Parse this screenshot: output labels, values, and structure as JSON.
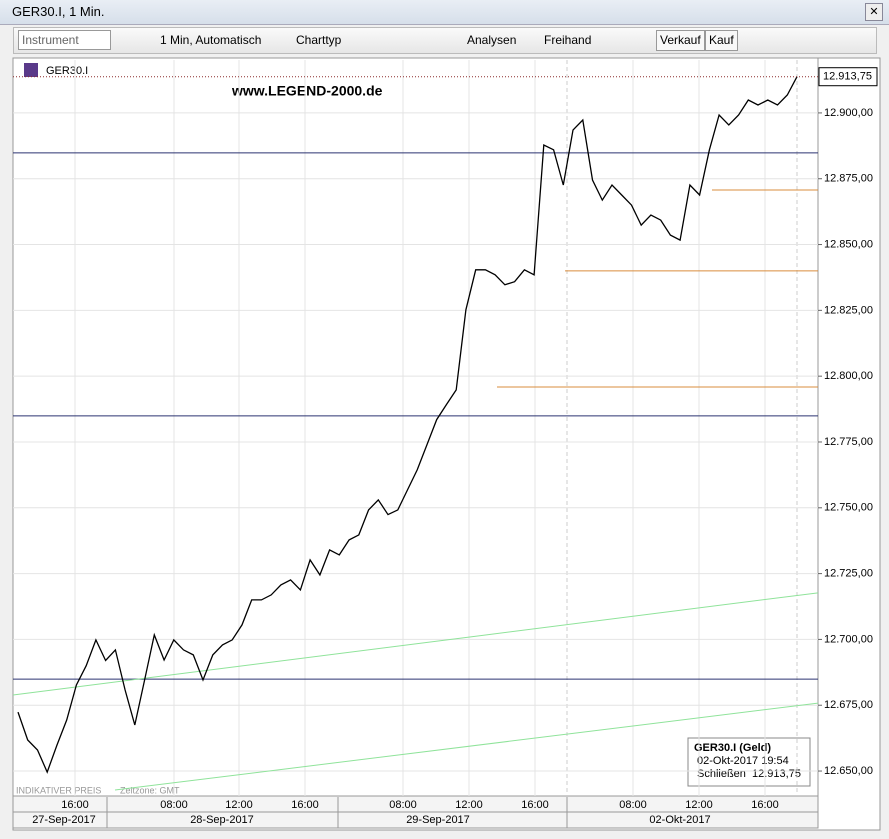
{
  "window": {
    "title": "GER30.I, 1 Min."
  },
  "toolbar": {
    "instrument": "Instrument",
    "interval": "1 Min,  Automatisch",
    "charttyp": "Charttyp",
    "analysen": "Analysen",
    "freihand": "Freihand",
    "verkauf": "Verkauf",
    "kauf": "Kauf"
  },
  "chart_data": {
    "type": "line",
    "symbol": "GER30.I",
    "watermark": "www.LEGEND-2000.de",
    "footer": "INDIKATIVER PREIS",
    "timezone": "Zeitzone: GMT",
    "series": [
      {
        "name": "GER30.I",
        "color": "#000000",
        "values": [
          12672.4,
          12661.8,
          12658,
          12649.6,
          12659.9,
          12669.4,
          12682.7,
          12690,
          12699.8,
          12692,
          12696,
          12680.8,
          12667.5,
          12684.6,
          12701.7,
          12692.2,
          12699.8,
          12696,
          12694.1,
          12684.6,
          12694.1,
          12697.9,
          12699.8,
          12705.5,
          12715,
          12715,
          12716.9,
          12720.7,
          12722.6,
          12718.8,
          12730.2,
          12724.5,
          12734,
          12732.1,
          12737.8,
          12739.7,
          12749.2,
          12753,
          12747.4,
          12749.2,
          12756.8,
          12764.4,
          12774,
          12783.5,
          12789.2,
          12794.8,
          12825.2,
          12840.4,
          12840.4,
          12838.5,
          12834.7,
          12835.9,
          12840.4,
          12838.5,
          12887.8,
          12886,
          12872.6,
          12893.5,
          12897.3,
          12874.5,
          12866.9,
          12872.6,
          12868.8,
          12865,
          12857.4,
          12861.2,
          12859.3,
          12853.6,
          12851.7,
          12872.6,
          12868.8,
          12886,
          12899.2,
          12895.4,
          12899.2,
          12904.9,
          12903,
          12904.9,
          12903,
          12906.8,
          12913.75
        ]
      }
    ],
    "ylim": [
      12640.9,
      12920.1
    ],
    "yticks": [
      {
        "value": 12650,
        "label": "12.650,00"
      },
      {
        "value": 12675,
        "label": "12.675,00"
      },
      {
        "value": 12700,
        "label": "12.700,00"
      },
      {
        "value": 12725,
        "label": "12.725,00"
      },
      {
        "value": 12750,
        "label": "12.750,00"
      },
      {
        "value": 12775,
        "label": "12.775,00"
      },
      {
        "value": 12800,
        "label": "12.800,00"
      },
      {
        "value": 12825,
        "label": "12.825,00"
      },
      {
        "value": 12850,
        "label": "12.850,00"
      },
      {
        "value": 12875,
        "label": "12.875,00"
      },
      {
        "value": 12900,
        "label": "12.900,00"
      }
    ],
    "last_price": {
      "value": 12913.75,
      "label": "12.913,75"
    },
    "time_labels": [
      "16:00",
      "08:00",
      "12:00",
      "16:00",
      "08:00",
      "12:00",
      "16:00",
      "08:00",
      "12:00",
      "16:00"
    ],
    "date_labels": [
      "27-Sep-2017",
      "28-Sep-2017",
      "29-Sep-2017",
      "02-Okt-2017"
    ],
    "levels": [
      {
        "value": 12884.8,
        "color": "#2b3370"
      },
      {
        "value": 12784.9,
        "color": "#2b3370"
      },
      {
        "value": 12684.9,
        "color": "#2b3370"
      },
      {
        "value": 12870.7,
        "color": "#d98c3c"
      },
      {
        "value": 12840,
        "color": "#d98c3c"
      },
      {
        "value": 12795.9,
        "color": "#d98c3c"
      }
    ],
    "trendlines": [
      {
        "values": [
          12678.9,
          12717.7
        ],
        "color": "#8fe39a"
      },
      {
        "values": [
          12642.8,
          12675.8
        ],
        "color": "#8fe39a"
      }
    ]
  },
  "info_box": {
    "title": "GER30.I (Geld)",
    "datetime": "02-Okt-2017 19:54",
    "label": "Schließen",
    "value": "12.913,75"
  }
}
